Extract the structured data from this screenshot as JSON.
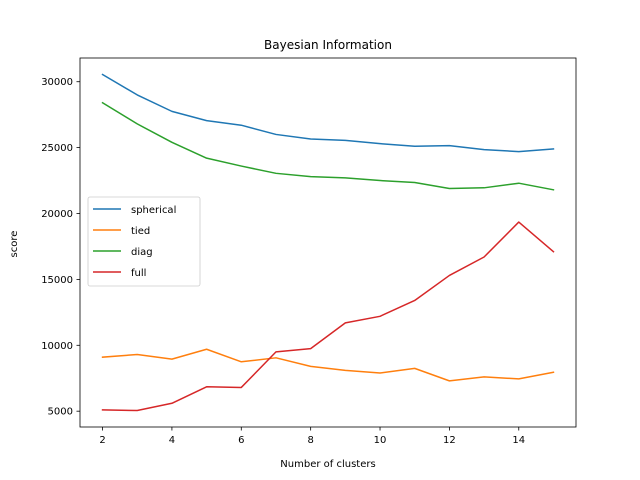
{
  "chart_data": {
    "type": "line",
    "title": "Bayesian Information",
    "xlabel": "Number of clusters",
    "ylabel": "score",
    "x": [
      2,
      3,
      4,
      5,
      6,
      7,
      8,
      9,
      10,
      11,
      12,
      13,
      14,
      15
    ],
    "xlim": [
      1.35,
      15.65
    ],
    "ylim": [
      3800,
      31800
    ],
    "xticks": [
      2,
      4,
      6,
      8,
      10,
      12,
      14
    ],
    "yticks": [
      5000,
      10000,
      15000,
      20000,
      25000,
      30000
    ],
    "grid": false,
    "legend_position": "center-left",
    "series": [
      {
        "name": "spherical",
        "color": "#1f77b4",
        "values": [
          30550,
          29000,
          27750,
          27050,
          26700,
          26000,
          25650,
          25550,
          25300,
          25100,
          25150,
          24850,
          24700,
          24900
        ]
      },
      {
        "name": "tied",
        "color": "#ff7f0e",
        "values": [
          9100,
          9300,
          8950,
          9700,
          8750,
          9050,
          8400,
          8100,
          7900,
          8250,
          7300,
          7600,
          7450,
          7950
        ]
      },
      {
        "name": "diag",
        "color": "#2ca02c",
        "values": [
          28400,
          26800,
          25400,
          24200,
          23600,
          23050,
          22800,
          22700,
          22500,
          22350,
          21900,
          21950,
          22300,
          21800
        ]
      },
      {
        "name": "full",
        "color": "#d62728",
        "values": [
          5100,
          5050,
          5600,
          6850,
          6800,
          9500,
          9750,
          11700,
          12200,
          13400,
          15300,
          16700,
          19350,
          17100
        ]
      }
    ]
  }
}
